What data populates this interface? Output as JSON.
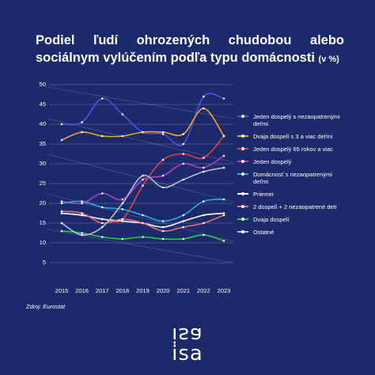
{
  "chart_data": {
    "type": "line",
    "title": "Podiel ľudí ohrozených chudobou alebo sociálnym vylúčením podľa typu domácnosti",
    "subtitle": "(v %)",
    "source": "Zdroj: Eurostat",
    "logo": "isa",
    "x": [
      2015,
      2016,
      2017,
      2018,
      2019,
      2020,
      2021,
      2022,
      2023
    ],
    "xlim": [
      2015,
      2023
    ],
    "ylim": [
      5,
      50
    ],
    "yticks": [
      5,
      10,
      15,
      20,
      25,
      30,
      35,
      40,
      45,
      50
    ],
    "grid": true,
    "legend": "right",
    "series": [
      {
        "name": "Jeden dospelý s nezaopatrenými deťmi",
        "color": "#4a55e8",
        "values": [
          40,
          40.5,
          46.5,
          42.5,
          38,
          37.5,
          35,
          47,
          46.5
        ]
      },
      {
        "name": "Dvaja dospelí s 3 a viac deťmi",
        "color": "#f5a623",
        "values": [
          36,
          38,
          37,
          37,
          38,
          38,
          37.5,
          44,
          37
        ]
      },
      {
        "name": "Jeden dospelý 65 rokov a viac",
        "color": "#e8403a",
        "values": [
          17.5,
          17,
          16,
          16,
          24.5,
          31,
          32.5,
          31.5,
          37
        ]
      },
      {
        "name": "Jeden dospelý",
        "color": "#b23ccc",
        "values": [
          20.5,
          20,
          22.5,
          21,
          26,
          27,
          30,
          29,
          32
        ]
      },
      {
        "name": "Domácnosť s nezaopatrenými deťmi",
        "color": "#2ea8e0",
        "values": [
          20,
          20.5,
          19,
          18.5,
          17,
          15.5,
          17,
          20.5,
          21
        ]
      },
      {
        "name": "Priemer",
        "color": "#ffffff",
        "values": [
          17.5,
          17,
          16,
          15.5,
          15,
          14,
          15.5,
          17,
          17.5
        ]
      },
      {
        "name": "2 dospelí + 2 nezaopatrené deti",
        "color": "#f06c7a",
        "values": [
          18,
          17.5,
          15,
          16,
          15,
          13,
          14,
          15,
          17
        ]
      },
      {
        "name": "Dvaja dospelí",
        "color": "#2ecc40",
        "values": [
          13,
          12.5,
          11.5,
          11,
          11.5,
          11,
          11,
          12,
          10.5
        ]
      },
      {
        "name": "Ostatné",
        "color": "#b8bccf",
        "values": [
          15,
          12,
          14,
          20,
          27,
          24,
          26,
          28,
          29
        ]
      }
    ]
  }
}
